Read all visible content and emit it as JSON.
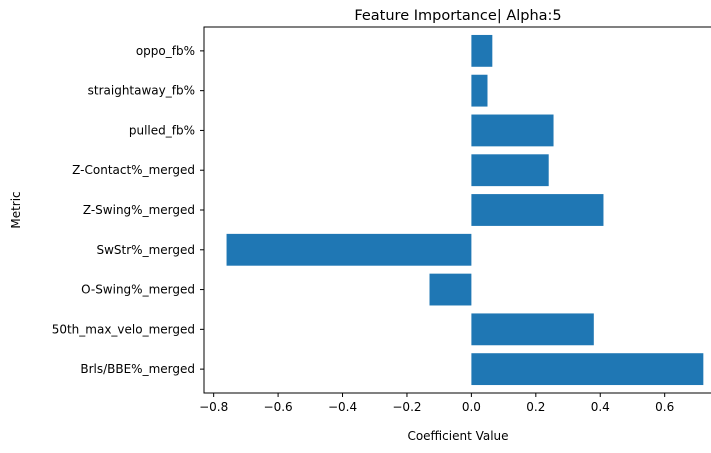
{
  "chart_data": {
    "type": "bar",
    "orientation": "horizontal",
    "title": "Feature Importance| Alpha:5",
    "xlabel": "Coefficient Value",
    "ylabel": "Metric",
    "categories": [
      "Brls/BBE%_merged",
      "50th_max_velo_merged",
      "O-Swing%_merged",
      "SwStr%_merged",
      "Z-Swing%_merged",
      "Z-Contact%_merged",
      "pulled_fb%",
      "straightaway_fb%",
      "oppo_fb%"
    ],
    "values": [
      0.72,
      0.38,
      -0.13,
      -0.76,
      0.41,
      0.24,
      0.255,
      0.05,
      0.065
    ],
    "xlim": [
      -0.83,
      0.75
    ],
    "xticks": [
      -0.8,
      -0.6,
      -0.4,
      -0.2,
      0.0,
      0.2,
      0.4,
      0.6
    ],
    "xtick_labels": [
      "−0.8",
      "−0.6",
      "−0.4",
      "−0.2",
      "0.0",
      "0.2",
      "0.4",
      "0.6"
    ],
    "grid": false,
    "color": "#1f77b4"
  }
}
